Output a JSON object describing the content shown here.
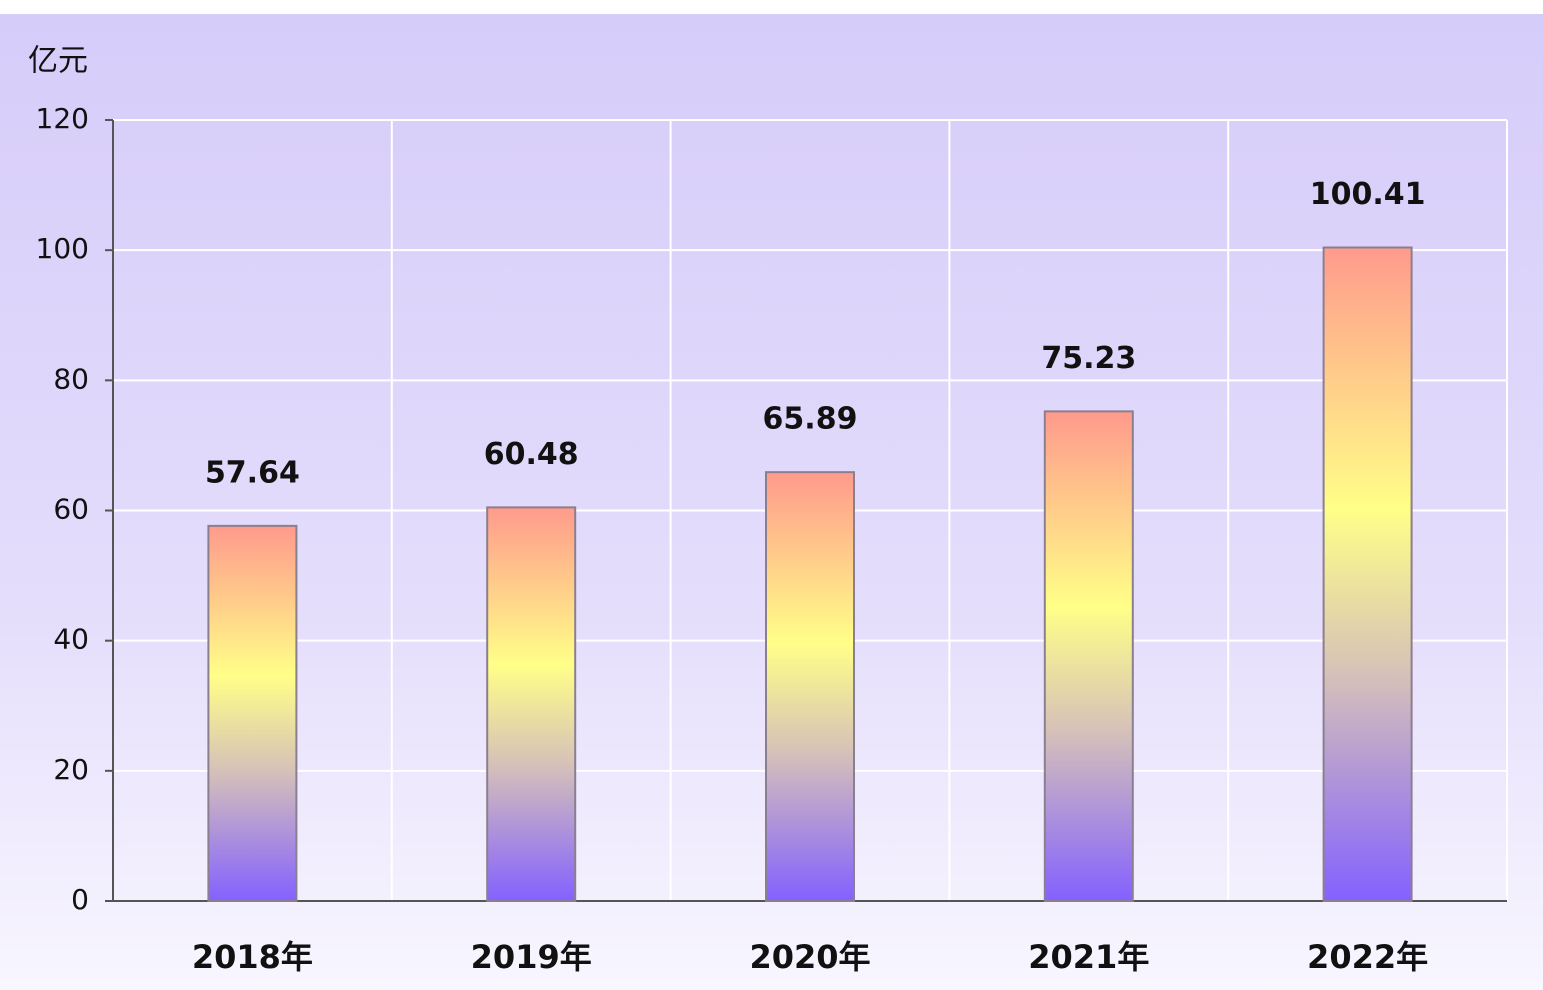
{
  "chart_data": {
    "type": "bar",
    "ylabel": "亿元",
    "categories": [
      "2018年",
      "2019年",
      "2020年",
      "2021年",
      "2022年"
    ],
    "values": [
      57.64,
      60.48,
      65.89,
      75.23,
      100.41
    ],
    "ylim": [
      0,
      120
    ],
    "yticks": [
      0,
      20,
      40,
      60,
      80,
      100,
      120
    ],
    "grid": true
  }
}
